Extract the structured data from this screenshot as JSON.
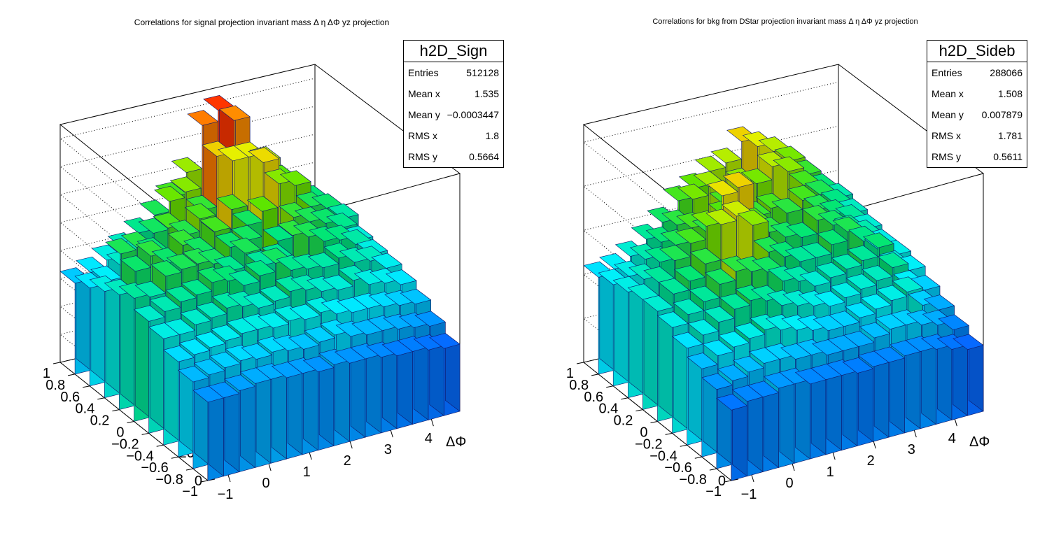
{
  "chart_data": [
    {
      "type": "lego2d",
      "title": "Correlations for signal projection  invariant mass  Δ η ΔΦ yz projection",
      "xlabel": "ΔΦ",
      "ylabel": "",
      "zlabel": "",
      "xlim": [
        -1.5,
        4.7
      ],
      "ylim": [
        -1,
        1
      ],
      "zlim": [
        0,
        1700
      ],
      "x_ticks": [
        "−1",
        "0",
        "1",
        "2",
        "3",
        "4"
      ],
      "y_ticks": [
        "−1",
        "−0.8",
        "−0.6",
        "−0.4",
        "−0.2",
        "0",
        "0.2",
        "0.4",
        "0.6",
        "0.8",
        "1"
      ],
      "z_ticks": [
        "0",
        "200",
        "400",
        "600",
        "800",
        "1000",
        "1200",
        "1400",
        "1600"
      ],
      "heights_rows_back_to_front": [
        [
          650,
          700,
          760,
          820,
          900,
          1000,
          1100,
          1250,
          1560,
          1640,
          1540,
          1200,
          1100,
          1000,
          900,
          800
        ],
        [
          700,
          720,
          800,
          860,
          980,
          1180,
          1220,
          1060,
          1420,
          1360,
          1360,
          1300,
          1140,
          1040,
          940,
          820
        ],
        [
          760,
          1000,
          1020,
          950,
          1100,
          1020,
          1110,
          980,
          1120,
          980,
          1400,
          1220,
          1180,
          1000,
          960,
          860
        ],
        [
          820,
          960,
          1040,
          960,
          1060,
          980,
          1100,
          960,
          980,
          1160,
          920,
          1060,
          1000,
          960,
          900,
          780
        ],
        [
          880,
          860,
          980,
          1000,
          1010,
          980,
          900,
          1000,
          880,
          900,
          1040,
          1000,
          940,
          920,
          860,
          760
        ],
        [
          800,
          840,
          880,
          900,
          960,
          940,
          880,
          920,
          980,
          900,
          880,
          860,
          900,
          840,
          820,
          740
        ],
        [
          760,
          760,
          800,
          820,
          860,
          840,
          800,
          820,
          860,
          840,
          800,
          780,
          820,
          760,
          740,
          700
        ],
        [
          680,
          700,
          720,
          740,
          760,
          760,
          740,
          760,
          740,
          760,
          720,
          700,
          700,
          680,
          660,
          640
        ],
        [
          620,
          640,
          660,
          680,
          660,
          680,
          660,
          640,
          660,
          680,
          640,
          620,
          620,
          600,
          580,
          560
        ],
        [
          560,
          560,
          580,
          600,
          600,
          580,
          580,
          560,
          580,
          560,
          560,
          540,
          520,
          520,
          500,
          480
        ]
      ],
      "stats": {
        "name": "h2D_Sign",
        "entries_label": "Entries",
        "entries": "512128",
        "meanx_label": "Mean x",
        "meanx": "1.535",
        "meany_label": "Mean y",
        "meany": "−0.0003447",
        "rmsx_label": "RMS x",
        "rmsx": "1.8",
        "rmsy_label": "RMS y",
        "rmsy": "0.5664"
      }
    },
    {
      "type": "lego2d",
      "title": "Correlations for bkg from DStar projection  invariant mass  Δ η ΔΦ yz projection",
      "xlabel": "ΔΦ",
      "ylabel": "",
      "zlabel": "",
      "xlim": [
        -1.5,
        4.7
      ],
      "ylim": [
        -1,
        1
      ],
      "zlim": [
        0,
        1080
      ],
      "x_ticks": [
        "−1",
        "0",
        "1",
        "2",
        "3",
        "4"
      ],
      "y_ticks": [
        "−1",
        "−0.8",
        "−0.6",
        "−0.4",
        "−0.2",
        "0",
        "0.2",
        "0.4",
        "0.6",
        "0.8",
        "1"
      ],
      "z_ticks": [
        "0",
        "200",
        "400",
        "600",
        "800",
        "1000"
      ],
      "heights_rows_back_to_front": [
        [
          440,
          460,
          500,
          560,
          620,
          700,
          740,
          800,
          820,
          900,
          860,
          820,
          760,
          680,
          600,
          540
        ],
        [
          460,
          480,
          540,
          600,
          660,
          760,
          800,
          700,
          780,
          760,
          820,
          780,
          700,
          640,
          580,
          520
        ],
        [
          480,
          520,
          580,
          640,
          700,
          660,
          720,
          640,
          680,
          700,
          660,
          700,
          640,
          600,
          560,
          500
        ],
        [
          500,
          560,
          640,
          700,
          760,
          880,
          900,
          720,
          660,
          620,
          600,
          660,
          620,
          580,
          540,
          480
        ],
        [
          500,
          560,
          600,
          660,
          820,
          840,
          780,
          640,
          600,
          560,
          560,
          600,
          640,
          580,
          520,
          480
        ],
        [
          480,
          520,
          560,
          620,
          660,
          640,
          620,
          560,
          540,
          500,
          520,
          540,
          560,
          600,
          500,
          460
        ],
        [
          440,
          480,
          520,
          560,
          580,
          560,
          520,
          500,
          480,
          460,
          480,
          500,
          520,
          560,
          460,
          420
        ],
        [
          400,
          440,
          460,
          480,
          500,
          480,
          460,
          440,
          420,
          420,
          440,
          460,
          480,
          500,
          420,
          380
        ],
        [
          360,
          380,
          400,
          420,
          420,
          400,
          400,
          380,
          380,
          380,
          400,
          420,
          420,
          400,
          380,
          340
        ],
        [
          320,
          340,
          340,
          360,
          360,
          340,
          340,
          340,
          330,
          340,
          340,
          350,
          350,
          340,
          320,
          300
        ]
      ],
      "stats": {
        "name": "h2D_Sideb",
        "entries_label": "Entries",
        "entries": "288066",
        "meanx_label": "Mean x",
        "meanx": "1.508",
        "meany_label": "Mean y",
        "meany": "0.007879",
        "rmsx_label": "RMS x",
        "rmsx": "1.781",
        "rmsy_label": "RMS y",
        "rmsy": "0.5611"
      }
    }
  ]
}
